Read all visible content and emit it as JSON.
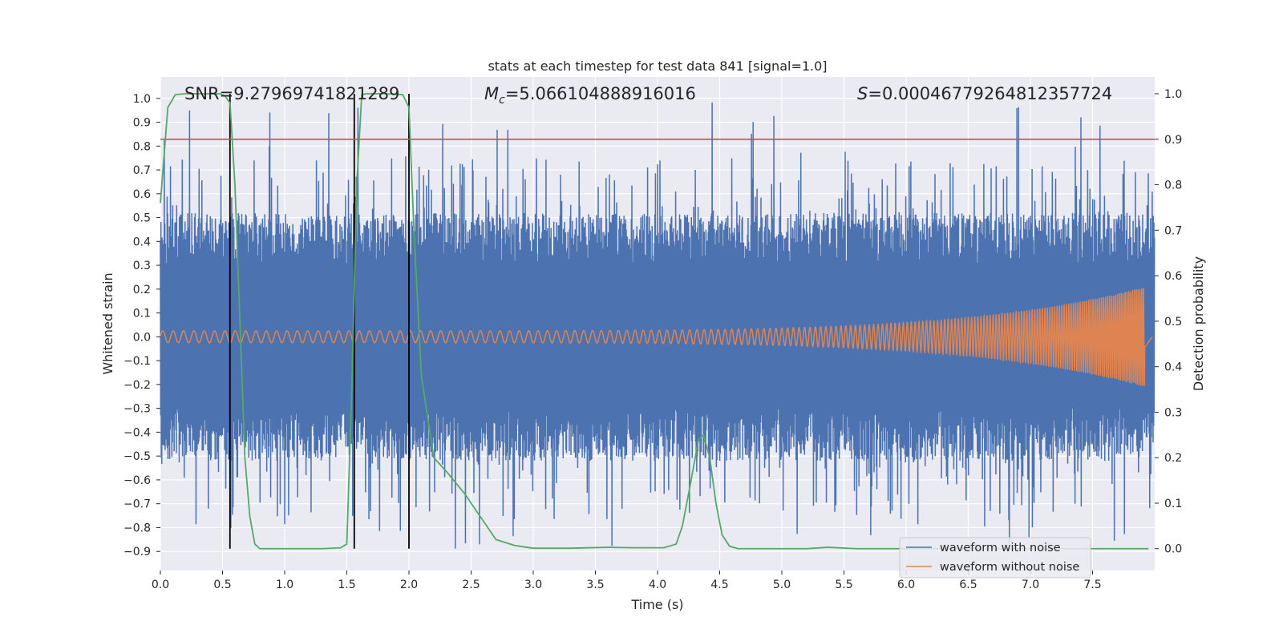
{
  "chart_data": {
    "type": "line",
    "title": "stats at each timestep for test data 841 [signal=1.0]",
    "xlabel": "Time (s)",
    "ylabel": "Whitened strain",
    "y2label": "Detection probability",
    "xlim": [
      0.0,
      8.0
    ],
    "ylim": [
      -0.98,
      1.09
    ],
    "y2lim": [
      -0.048,
      1.037
    ],
    "xticks": [
      "0.0",
      "0.5",
      "1.0",
      "1.5",
      "2.0",
      "2.5",
      "3.0",
      "3.5",
      "4.0",
      "4.5",
      "5.0",
      "5.5",
      "6.0",
      "6.5",
      "7.0",
      "7.5"
    ],
    "yticks": [
      "1.0",
      "0.9",
      "0.8",
      "0.7",
      "0.6",
      "0.5",
      "0.4",
      "0.3",
      "0.2",
      "0.1",
      "0.0",
      "−0.1",
      "−0.2",
      "−0.3",
      "−0.4",
      "−0.5",
      "−0.6",
      "−0.7",
      "−0.8",
      "−0.9"
    ],
    "y2ticks": [
      "1.0",
      "0.9",
      "0.8",
      "0.7",
      "0.6",
      "0.5",
      "0.4",
      "0.3",
      "0.2",
      "0.1",
      "0.0"
    ],
    "grid": true,
    "legend_position": "lower-right",
    "annotations": {
      "snr": "SNR=9.27969741821289",
      "mc_value": "=5.066104888916016",
      "s_value": "=0.00046779264812357724"
    },
    "threshold": {
      "axis": "right",
      "value": 0.9
    },
    "vlines": [
      0.56,
      1.56,
      2.0
    ],
    "series": [
      {
        "name": "waveform with noise",
        "kind": "noise",
        "color": "#4c72b0",
        "envelope_abs": 0.9,
        "spike_max": 0.99,
        "spike_min": -0.89
      },
      {
        "name": "waveform without noise",
        "kind": "chirp",
        "color": "#dd8452",
        "t_end": 7.92,
        "amp_start": 0.025,
        "amp_end": 0.21,
        "freq_start": 12,
        "freq_end": 70
      },
      {
        "kind": "probability",
        "color": "#55a868",
        "axis": "right",
        "x": [
          0.0,
          0.06,
          0.12,
          0.2,
          0.3,
          0.4,
          0.48,
          0.52,
          0.56,
          0.6,
          0.64,
          0.68,
          0.72,
          0.76,
          0.8,
          1.0,
          1.3,
          1.45,
          1.5,
          1.54,
          1.58,
          1.62,
          1.66,
          1.8,
          1.95,
          2.0,
          2.04,
          2.1,
          2.2,
          2.3,
          2.45,
          2.6,
          2.7,
          2.85,
          3.0,
          3.3,
          3.6,
          3.8,
          4.05,
          4.15,
          4.2,
          4.27,
          4.33,
          4.37,
          4.42,
          4.47,
          4.52,
          4.58,
          4.65,
          4.9,
          5.2,
          5.37,
          5.6,
          6.0,
          6.5,
          7.0,
          7.5,
          7.95
        ],
        "values": [
          0.76,
          0.97,
          0.998,
          1.0,
          1.0,
          1.0,
          1.0,
          0.995,
          0.98,
          0.8,
          0.5,
          0.2,
          0.07,
          0.01,
          0.0,
          0.0,
          0.0,
          0.002,
          0.01,
          0.35,
          0.8,
          0.998,
          1.0,
          1.0,
          0.998,
          0.97,
          0.7,
          0.38,
          0.2,
          0.17,
          0.12,
          0.06,
          0.02,
          0.007,
          0.001,
          0.001,
          0.003,
          0.002,
          0.002,
          0.01,
          0.05,
          0.15,
          0.24,
          0.25,
          0.2,
          0.1,
          0.03,
          0.005,
          0.0,
          0.0,
          0.0,
          0.003,
          0.0,
          0.0,
          0.0,
          0.0,
          0.0,
          0.0
        ]
      }
    ]
  }
}
